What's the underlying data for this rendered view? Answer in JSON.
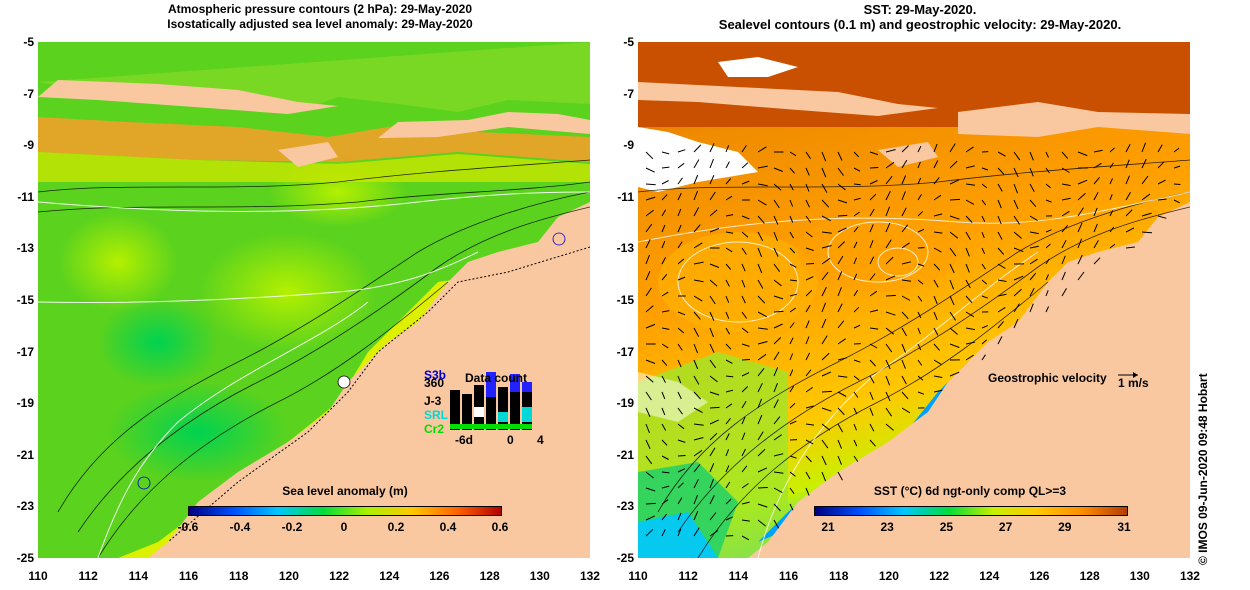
{
  "left_panel": {
    "title_line1": "Atmospheric pressure contours (2 hPa): 29-May-2020",
    "title_line2": "Isostatically adjusted sea level anomaly: 29-May-2020",
    "colorbar_title": "Sea level anomaly (m)",
    "colorbar_ticks": [
      "-0.6",
      "-0.4",
      "-0.2",
      "0",
      "0.2",
      "0.4",
      "0.6"
    ],
    "legend": {
      "satellites": [
        "S3b",
        "360",
        "J-3",
        "SRL",
        "Cr2"
      ],
      "satellite_colors": [
        "#0000cc",
        "#000000",
        "#000000",
        "#00d8d8",
        "#00dd00"
      ],
      "title": "Data count",
      "axis_ticks": [
        "-6d",
        "0",
        "4"
      ]
    }
  },
  "right_panel": {
    "title_line1": "SST: 29-May-2020.",
    "title_line2": "Sealevel contours (0.1 m) and geostrophic velocity: 29-May-2020.",
    "colorbar_title": "SST (°C) 6d ngt-only comp QL>=3",
    "colorbar_ticks": [
      "21",
      "23",
      "25",
      "27",
      "29",
      "31"
    ],
    "velocity_label": "Geostrophic velocity",
    "velocity_scale": "1 m/s"
  },
  "axes": {
    "y_ticks": [
      "-5",
      "-7",
      "-9",
      "-11",
      "-13",
      "-15",
      "-17",
      "-19",
      "-21",
      "-23",
      "-25"
    ],
    "x_ticks": [
      "110",
      "112",
      "114",
      "116",
      "118",
      "120",
      "122",
      "124",
      "126",
      "128",
      "130",
      "132"
    ]
  },
  "credit": "© IMOS 09-Jun-2020 09:48 Hobart",
  "colors": {
    "land": "#fac8a0",
    "sla_gradient": [
      "#000080",
      "#0050ff",
      "#00c8ff",
      "#00dc3c",
      "#aaf000",
      "#ffc800",
      "#ff6400",
      "#b40000"
    ],
    "sst_gradient": [
      "#000080",
      "#0050ff",
      "#00c8ff",
      "#00dc3c",
      "#c8f000",
      "#ffc800",
      "#ff8c00",
      "#b43c00"
    ]
  }
}
